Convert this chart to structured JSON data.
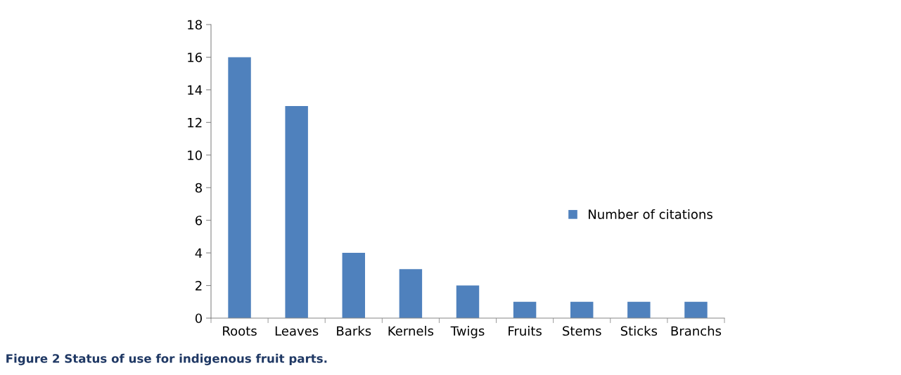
{
  "chart_data": {
    "type": "bar",
    "categories": [
      "Roots",
      "Leaves",
      "Barks",
      "Kernels",
      "Twigs",
      "Fruits",
      "Stems",
      "Sticks",
      "Branchs"
    ],
    "series": [
      {
        "name": "Number of citations",
        "color": "#4f81bd",
        "values": [
          16,
          13,
          4,
          3,
          2,
          1,
          1,
          1,
          1
        ]
      }
    ],
    "ylim": [
      0,
      18
    ],
    "yticks": [
      0,
      2,
      4,
      6,
      8,
      10,
      12,
      14,
      16,
      18
    ],
    "grid": false,
    "legend": "right",
    "annotations": [
      "Figure 2 Status of use for indigenous fruit parts."
    ]
  }
}
